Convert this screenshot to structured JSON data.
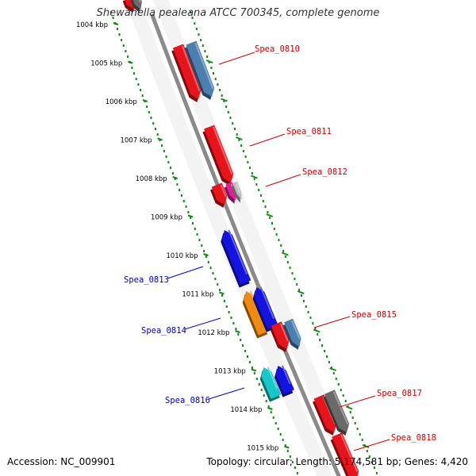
{
  "title": "Shewanella pealeana ATCC 700345, complete genome",
  "footer": {
    "accession": "Accession: NC_009901",
    "summary": "Topology: circular; Length: 5,174,581 bp; Genes: 4,420"
  },
  "colors": {
    "red": "#e8141c",
    "steel_blue": "#4a7fb0",
    "blue": "#1414e0",
    "orange": "#f08a10",
    "cyan": "#18c8c8",
    "magenta": "#e0209a",
    "gray": "#6a6a6a",
    "label_red": "#cc0000",
    "label_blue": "#0000cc",
    "ruler": "#118811",
    "backbone": "#888888"
  },
  "ruler_labels": [
    "1004 kbp",
    "1005 kbp",
    "1006 kbp",
    "1007 kbp",
    "1008 kbp",
    "1009 kbp",
    "1010 kbp",
    "1011 kbp",
    "1012 kbp",
    "1013 kbp",
    "1014 kbp",
    "1015 kbp"
  ],
  "gene_labels": [
    {
      "name": "Spea_0810",
      "side": "right"
    },
    {
      "name": "Spea_0811",
      "side": "right"
    },
    {
      "name": "Spea_0812",
      "side": "right"
    },
    {
      "name": "Spea_0813",
      "side": "left"
    },
    {
      "name": "Spea_0814",
      "side": "left"
    },
    {
      "name": "Spea_0815",
      "side": "right"
    },
    {
      "name": "Spea_0816",
      "side": "left"
    },
    {
      "name": "Spea_0817",
      "side": "right"
    },
    {
      "name": "Spea_0818",
      "side": "right"
    }
  ]
}
